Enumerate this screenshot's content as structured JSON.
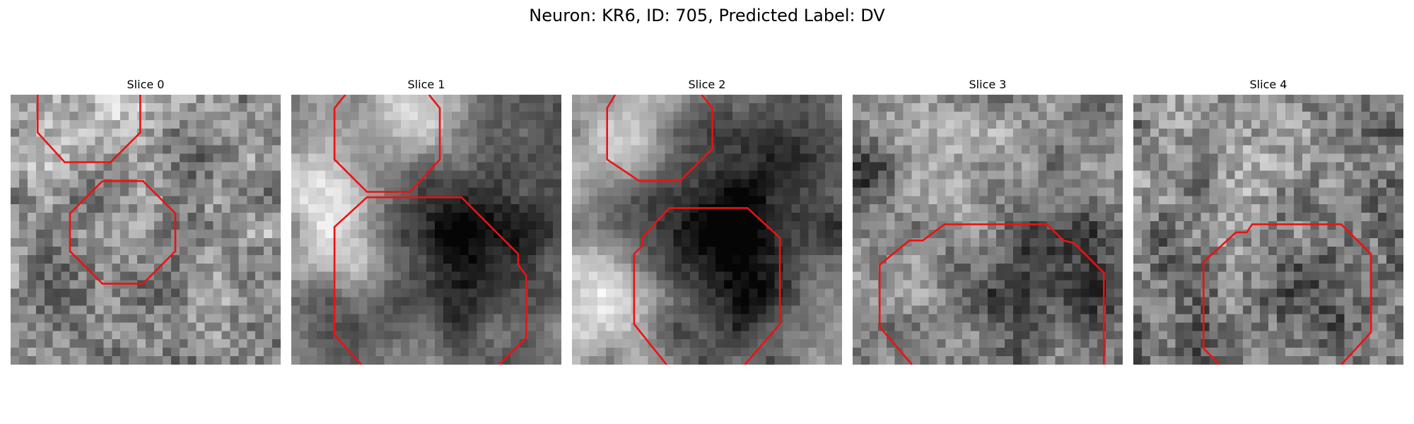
{
  "figure": {
    "title": "Neuron: KR6, ID: 705, Predicted Label: DV"
  },
  "panels": [
    {
      "title": "Slice 0"
    },
    {
      "title": "Slice 1"
    },
    {
      "title": "Slice 2"
    },
    {
      "title": "Slice 3"
    },
    {
      "title": "Slice 4"
    }
  ],
  "colors": {
    "contour": "#ee1111",
    "colormap": "gray"
  }
}
